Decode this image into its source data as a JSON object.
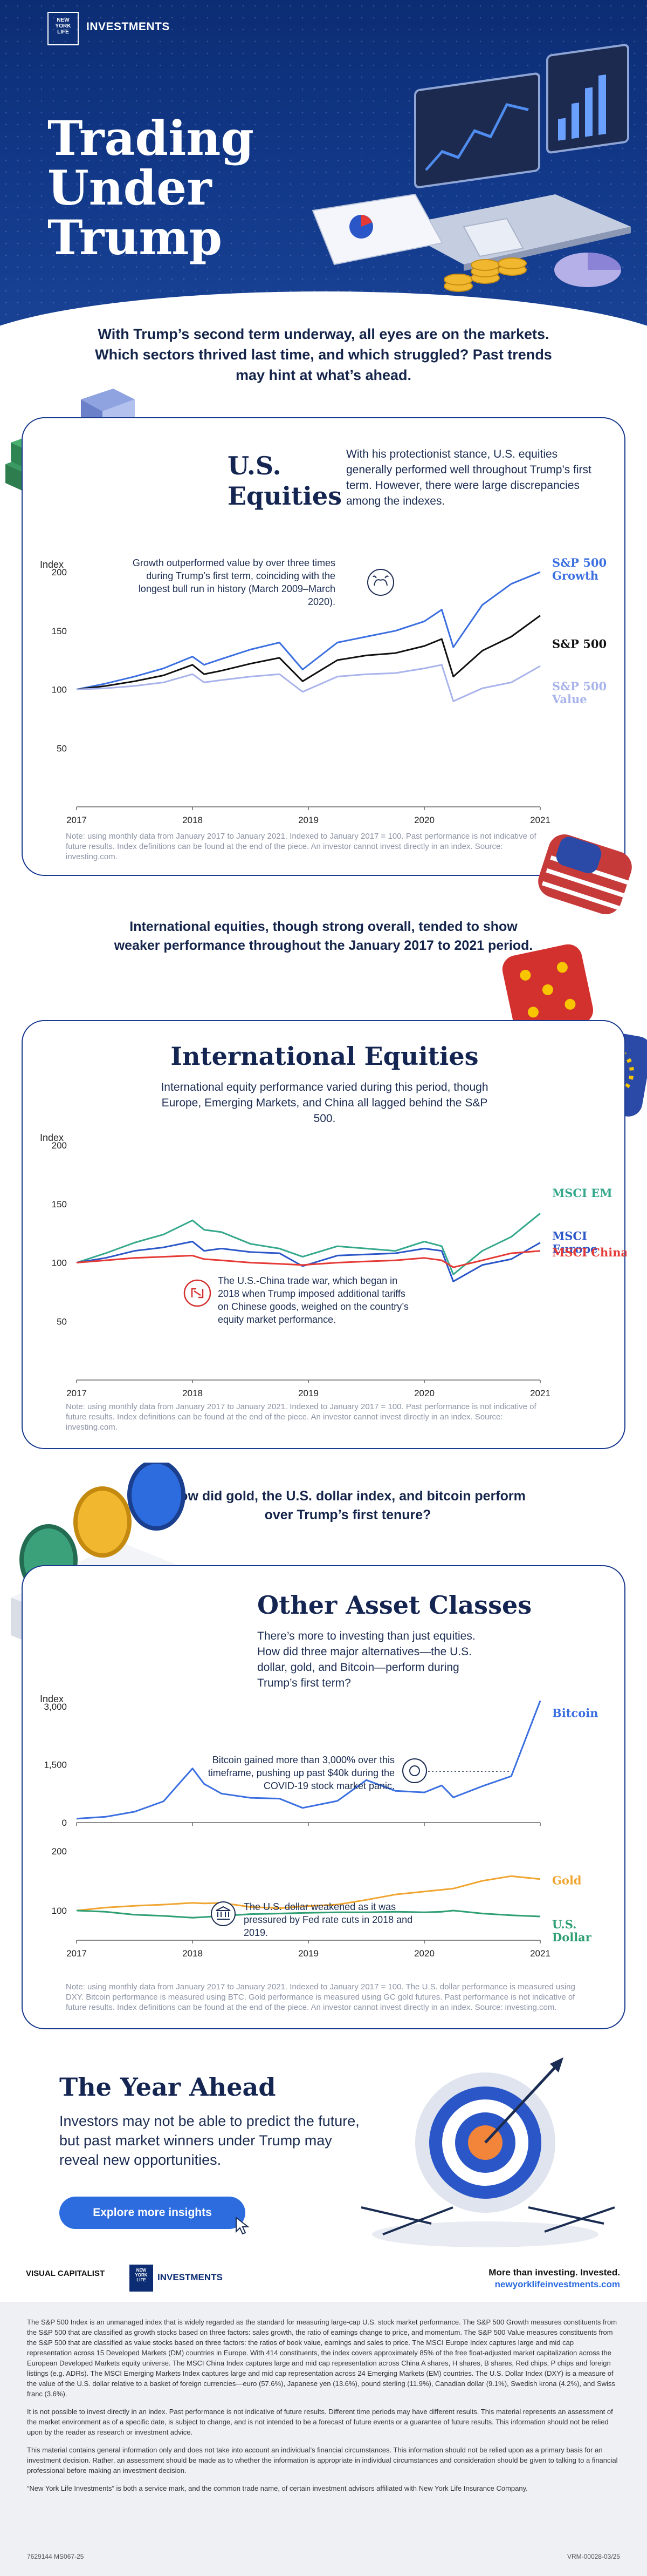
{
  "header": {
    "brand_logo": "NEW YORK LIFE",
    "brand_name": "INVESTMENTS",
    "title": "Trading Under Trump"
  },
  "intro": "With Trump’s second term underway, all eyes are on the markets. Which sectors thrived last time, and which struggled? Past trends may hint at what’s ahead.",
  "us_equities": {
    "title": "U.S. Equities",
    "description": "With his protectionist stance, U.S. equities generally performed well throughout Trump’s first term. However, there were large discrepancies among the indexes.",
    "annotation": "Growth outperformed value by over three times during Trump’s first term, coinciding with the longest bull run in history (March 2009–March 2020).",
    "note": "Note: using monthly data from January 2017 to January 2021. Indexed to January 2017 = 100. Past performance is not indicative of future results. Index definitions can be found at the end of the piece. An investor cannot invest directly in an index. Source: investing.com."
  },
  "intl_lead": "International equities, though strong overall, tended to show weaker performance throughout the January 2017 to 2021 period.",
  "intl_equities": {
    "title": "International Equities",
    "description": "International equity performance varied during this period, though Europe, Emerging Markets, and China all lagged behind the S&P 500.",
    "annotation": "The U.S.-China trade war, which began in 2018 when Trump imposed additional tariffs on Chinese goods, weighed on the country’s equity market performance.",
    "note": "Note: using monthly data from January 2017 to January 2021. Indexed to January 2017 = 100. Past performance is not indicative of future results. Index definitions can be found at the end of the piece. An investor cannot invest directly in an index. Source: investing.com."
  },
  "other_lead": "How did gold, the U.S. dollar index, and bitcoin perform over Trump’s first tenure?",
  "other_assets": {
    "title": "Other Asset Classes",
    "description": "There’s more to investing than just equities. How did three major alternatives—the U.S. dollar, gold, and Bitcoin—perform during Trump’s first term?",
    "annotation_btc": "Bitcoin gained more than 3,000% over this timeframe, pushing up past $40k during the COVID-19 stock market panic.",
    "annotation_usd": "The U.S. dollar weakened as it was pressured by Fed rate cuts in 2018 and 2019.",
    "note": "Note: using monthly data from January 2017 to January 2021. Indexed to January 2017 = 100. The U.S. dollar performance is measured using DXY. Bitcoin performance is measured using BTC. Gold performance is measured using GC gold futures. Past performance is not indicative of future results. Index definitions can be found at the end of the piece. An investor cannot invest directly in an index. Source: investing.com."
  },
  "year_ahead": {
    "title": "The Year Ahead",
    "description": "Investors may not be able to predict the future, but past market winners under Trump may reveal new opportunities.",
    "button": "Explore more insights"
  },
  "footer": {
    "vc_logo": "VISUAL CAPITALIST",
    "nyl_logo": "NEW YORK LIFE",
    "nyl_name": "INVESTMENTS",
    "tagline": "More than investing. Invested.",
    "url": "newyorklifeinvestments.com",
    "disclaimer_1": "The S&P 500 Index is an unmanaged index that is widely regarded as the standard for measuring large-cap U.S. stock market performance. The S&P 500 Growth measures constituents from the S&P 500 that are classified as growth stocks based on three factors: sales growth, the ratio of earnings change to price, and momentum. The S&P 500 Value measures constituents from the S&P 500 that are classified as value stocks based on three factors: the ratios of book value, earnings and sales to price. The MSCI Europe Index captures large and mid cap representation across 15 Developed Markets (DM) countries in Europe. With 414 constituents, the index covers approximately 85% of the free float-adjusted market capitalization across the European Developed Markets equity universe. The MSCI China Index captures large and mid cap representation across China A shares, H shares, B shares, Red chips, P chips and foreign listings (e.g. ADRs). The MSCI Emerging Markets Index captures large and mid cap representation across 24 Emerging Markets (EM) countries. The U.S. Dollar Index (DXY) is a measure of the value of the U.S. dollar relative to a basket of foreign currencies—euro (57.6%), Japanese yen (13.6%), pound sterling (11.9%), Canadian dollar (9.1%), Swedish krona (4.2%), and Swiss franc (3.6%).",
    "disclaimer_2": "It is not possible to invest directly in an index. Past performance is not indicative of future results. Different time periods may have different results. This material represents an assessment of the market environment as of a specific date, is subject to change, and is not intended to be a forecast of future events or a guarantee of future results. This information should not be relied upon by the reader as research or investment advice.",
    "disclaimer_3": "This material contains general information only and does not take into account an individual’s financial circumstances. This information should not be relied upon as a primary basis for an investment decision. Rather, an assessment should be made as to whether the information is appropriate in individual circumstances and consideration should be given to talking to a financial professional before making an investment decision.",
    "disclaimer_4": "“New York Life Investments” is both a service mark, and the common trade name, of certain investment advisors affiliated with New York Life Insurance Company.",
    "code_left": "7629144 MS067-25",
    "code_right": "VRM-00028-03/25"
  },
  "colors": {
    "navy": "#0c2d74",
    "sp500_growth": "#3b6fe0",
    "sp500": "#111111",
    "sp500_value": "#a9b3ec",
    "msci_em": "#35a88c",
    "msci_europe": "#2b56c8",
    "msci_china": "#e53935",
    "bitcoin": "#3b6fe0",
    "gold": "#f0a531",
    "usd": "#2e9e73"
  },
  "chart_data": [
    {
      "type": "line",
      "ylabel": "Index",
      "ylim": [
        0,
        200
      ],
      "yticks": [
        50,
        100,
        150,
        200
      ],
      "xticks": [
        "2017",
        "2018",
        "2019",
        "2020",
        "2021"
      ],
      "grid": false,
      "legend": "right",
      "x": [
        2017.0,
        2017.25,
        2017.5,
        2017.75,
        2018.0,
        2018.1,
        2018.25,
        2018.5,
        2018.75,
        2018.95,
        2019.25,
        2019.5,
        2019.75,
        2020.0,
        2020.15,
        2020.25,
        2020.5,
        2020.75,
        2021.0
      ],
      "series": [
        {
          "name": "S&P 500 Growth",
          "values": [
            100,
            105,
            111,
            118,
            128,
            121,
            126,
            134,
            140,
            117,
            140,
            145,
            150,
            158,
            168,
            136,
            172,
            190,
            200
          ]
        },
        {
          "name": "S&P 500",
          "values": [
            100,
            103,
            107,
            112,
            121,
            113,
            116,
            122,
            127,
            107,
            125,
            129,
            131,
            137,
            143,
            111,
            133,
            145,
            163
          ]
        },
        {
          "name": "S&P 500 Value",
          "values": [
            100,
            101,
            103,
            106,
            113,
            106,
            108,
            111,
            113,
            98,
            111,
            113,
            114,
            118,
            121,
            90,
            101,
            106,
            120
          ]
        }
      ]
    },
    {
      "type": "line",
      "ylabel": "Index",
      "ylim": [
        0,
        200
      ],
      "yticks": [
        50,
        100,
        150,
        200
      ],
      "xticks": [
        "2017",
        "2018",
        "2019",
        "2020",
        "2021"
      ],
      "grid": false,
      "legend": "right",
      "x": [
        2017.0,
        2017.25,
        2017.5,
        2017.75,
        2018.0,
        2018.1,
        2018.25,
        2018.5,
        2018.75,
        2018.95,
        2019.25,
        2019.5,
        2019.75,
        2020.0,
        2020.15,
        2020.25,
        2020.5,
        2020.75,
        2021.0
      ],
      "series": [
        {
          "name": "MSCI EM",
          "values": [
            100,
            108,
            117,
            124,
            136,
            128,
            126,
            116,
            112,
            105,
            114,
            112,
            110,
            118,
            114,
            90,
            110,
            122,
            142
          ]
        },
        {
          "name": "MSCI Europe",
          "values": [
            100,
            104,
            110,
            113,
            118,
            110,
            112,
            109,
            108,
            97,
            106,
            107,
            108,
            112,
            110,
            84,
            98,
            103,
            117
          ]
        },
        {
          "name": "MSCI China",
          "values": [
            100,
            102,
            104,
            105,
            106,
            103,
            102,
            100,
            99,
            98,
            100,
            101,
            102,
            104,
            102,
            96,
            102,
            108,
            110
          ]
        }
      ]
    },
    {
      "type": "line",
      "ylabel": "Index",
      "ylim": [
        0,
        3000
      ],
      "yticks": [
        0,
        1500,
        3000
      ],
      "xticks": [
        "2017",
        "2018",
        "2019",
        "2020",
        "2021"
      ],
      "grid": false,
      "legend": "right",
      "x": [
        2017.0,
        2017.25,
        2017.5,
        2017.75,
        2018.0,
        2018.1,
        2018.25,
        2018.5,
        2018.75,
        2018.95,
        2019.25,
        2019.5,
        2019.75,
        2020.0,
        2020.15,
        2020.25,
        2020.5,
        2020.75,
        2021.0
      ],
      "series": [
        {
          "name": "Bitcoin",
          "values": [
            100,
            150,
            280,
            550,
            1400,
            1000,
            750,
            640,
            620,
            380,
            560,
            1100,
            820,
            780,
            960,
            650,
            940,
            1200,
            3150
          ]
        }
      ]
    },
    {
      "type": "line",
      "ylim": [
        50,
        200
      ],
      "yticks": [
        100,
        200
      ],
      "xticks": [
        "2017",
        "2018",
        "2019",
        "2020",
        "2021"
      ],
      "grid": false,
      "legend": "right",
      "x": [
        2017.0,
        2017.25,
        2017.5,
        2017.75,
        2018.0,
        2018.1,
        2018.25,
        2018.5,
        2018.75,
        2018.95,
        2019.25,
        2019.5,
        2019.75,
        2020.0,
        2020.15,
        2020.25,
        2020.5,
        2020.75,
        2021.0
      ],
      "series": [
        {
          "name": "Gold",
          "values": [
            100,
            105,
            108,
            110,
            113,
            112,
            113,
            106,
            104,
            107,
            110,
            118,
            127,
            132,
            135,
            137,
            150,
            158,
            153
          ]
        },
        {
          "name": "U.S. Dollar",
          "values": [
            100,
            98,
            93,
            91,
            88,
            89,
            91,
            94,
            95,
            96,
            97,
            97,
            98,
            97,
            98,
            100,
            95,
            92,
            90
          ]
        }
      ]
    }
  ]
}
